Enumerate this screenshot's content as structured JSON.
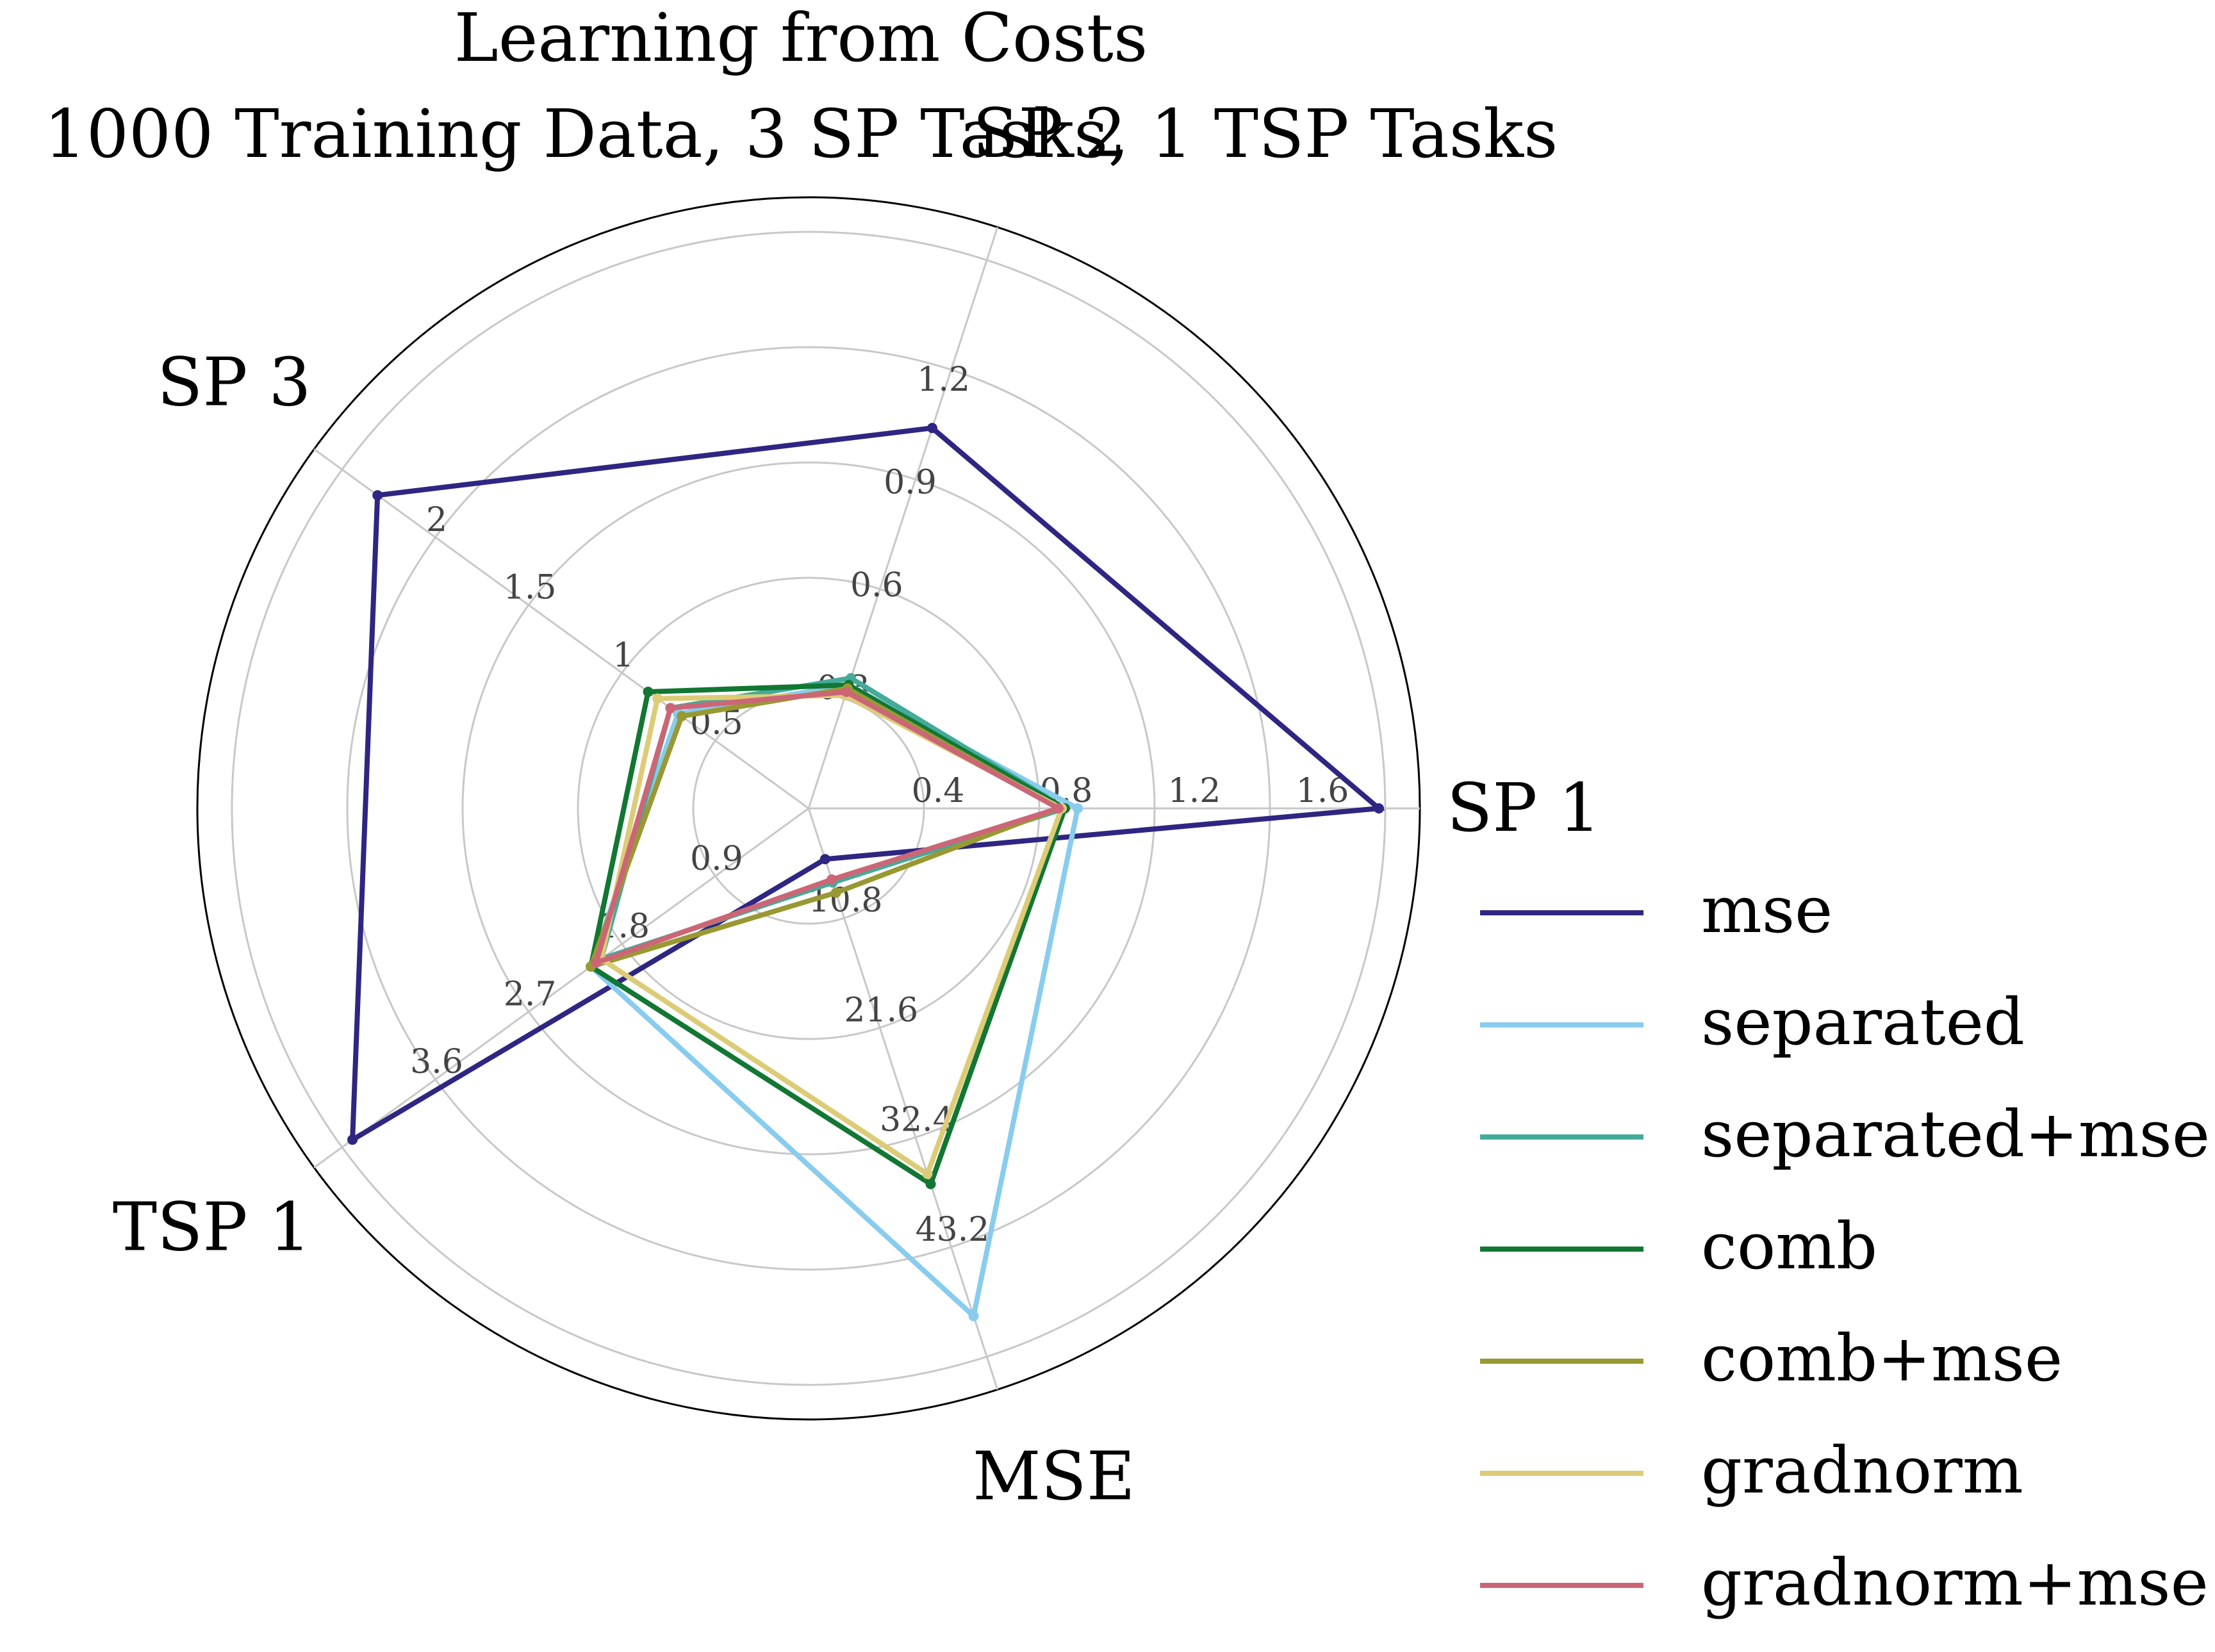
{
  "chart_data": {
    "type": "radar",
    "title": "Learning from Costs",
    "subtitle": "1000 Training Data, 3 SP Tasks, 1 TSP Tasks",
    "axes": [
      {
        "label": "SP 1",
        "max": 1.8,
        "ticks": [
          0.4,
          0.8,
          1.2,
          1.6
        ]
      },
      {
        "label": "SP 2",
        "max": 1.6,
        "ticks": [
          0.3,
          0.6,
          0.9,
          1.2
        ]
      },
      {
        "label": "SP 3",
        "max": 2.5,
        "ticks": [
          0.5,
          1.0,
          1.5,
          2.0
        ]
      },
      {
        "label": "TSP 1",
        "max": 4.5,
        "ticks": [
          0.9,
          1.8,
          2.7,
          3.6
        ]
      },
      {
        "label": "MSE",
        "max": 54.0,
        "ticks": [
          10.8,
          21.6,
          32.4,
          43.2
        ]
      }
    ],
    "grid": true,
    "legend_position": "right",
    "series": [
      {
        "name": "mse",
        "color": "#2e2682",
        "values": [
          1.78,
          1.11,
          2.31,
          4.4,
          5.0
        ]
      },
      {
        "name": "separated",
        "color": "#88ccee",
        "values": [
          0.84,
          0.36,
          0.7,
          2.1,
          50.0
        ]
      },
      {
        "name": "separated+mse",
        "color": "#44aa99",
        "values": [
          0.8,
          0.38,
          0.74,
          2.0,
          7.3
        ]
      },
      {
        "name": "comb",
        "color": "#117733",
        "values": [
          0.8,
          0.36,
          0.86,
          2.1,
          37.0
        ]
      },
      {
        "name": "comb+mse",
        "color": "#999933",
        "values": [
          0.78,
          0.35,
          0.68,
          2.1,
          8.3
        ]
      },
      {
        "name": "gradnorm",
        "color": "#ddcc77",
        "values": [
          0.79,
          0.33,
          0.81,
          2.0,
          36.0
        ]
      },
      {
        "name": "gradnorm+mse",
        "color": "#cc6677",
        "values": [
          0.78,
          0.34,
          0.74,
          2.05,
          7.0
        ]
      }
    ]
  }
}
